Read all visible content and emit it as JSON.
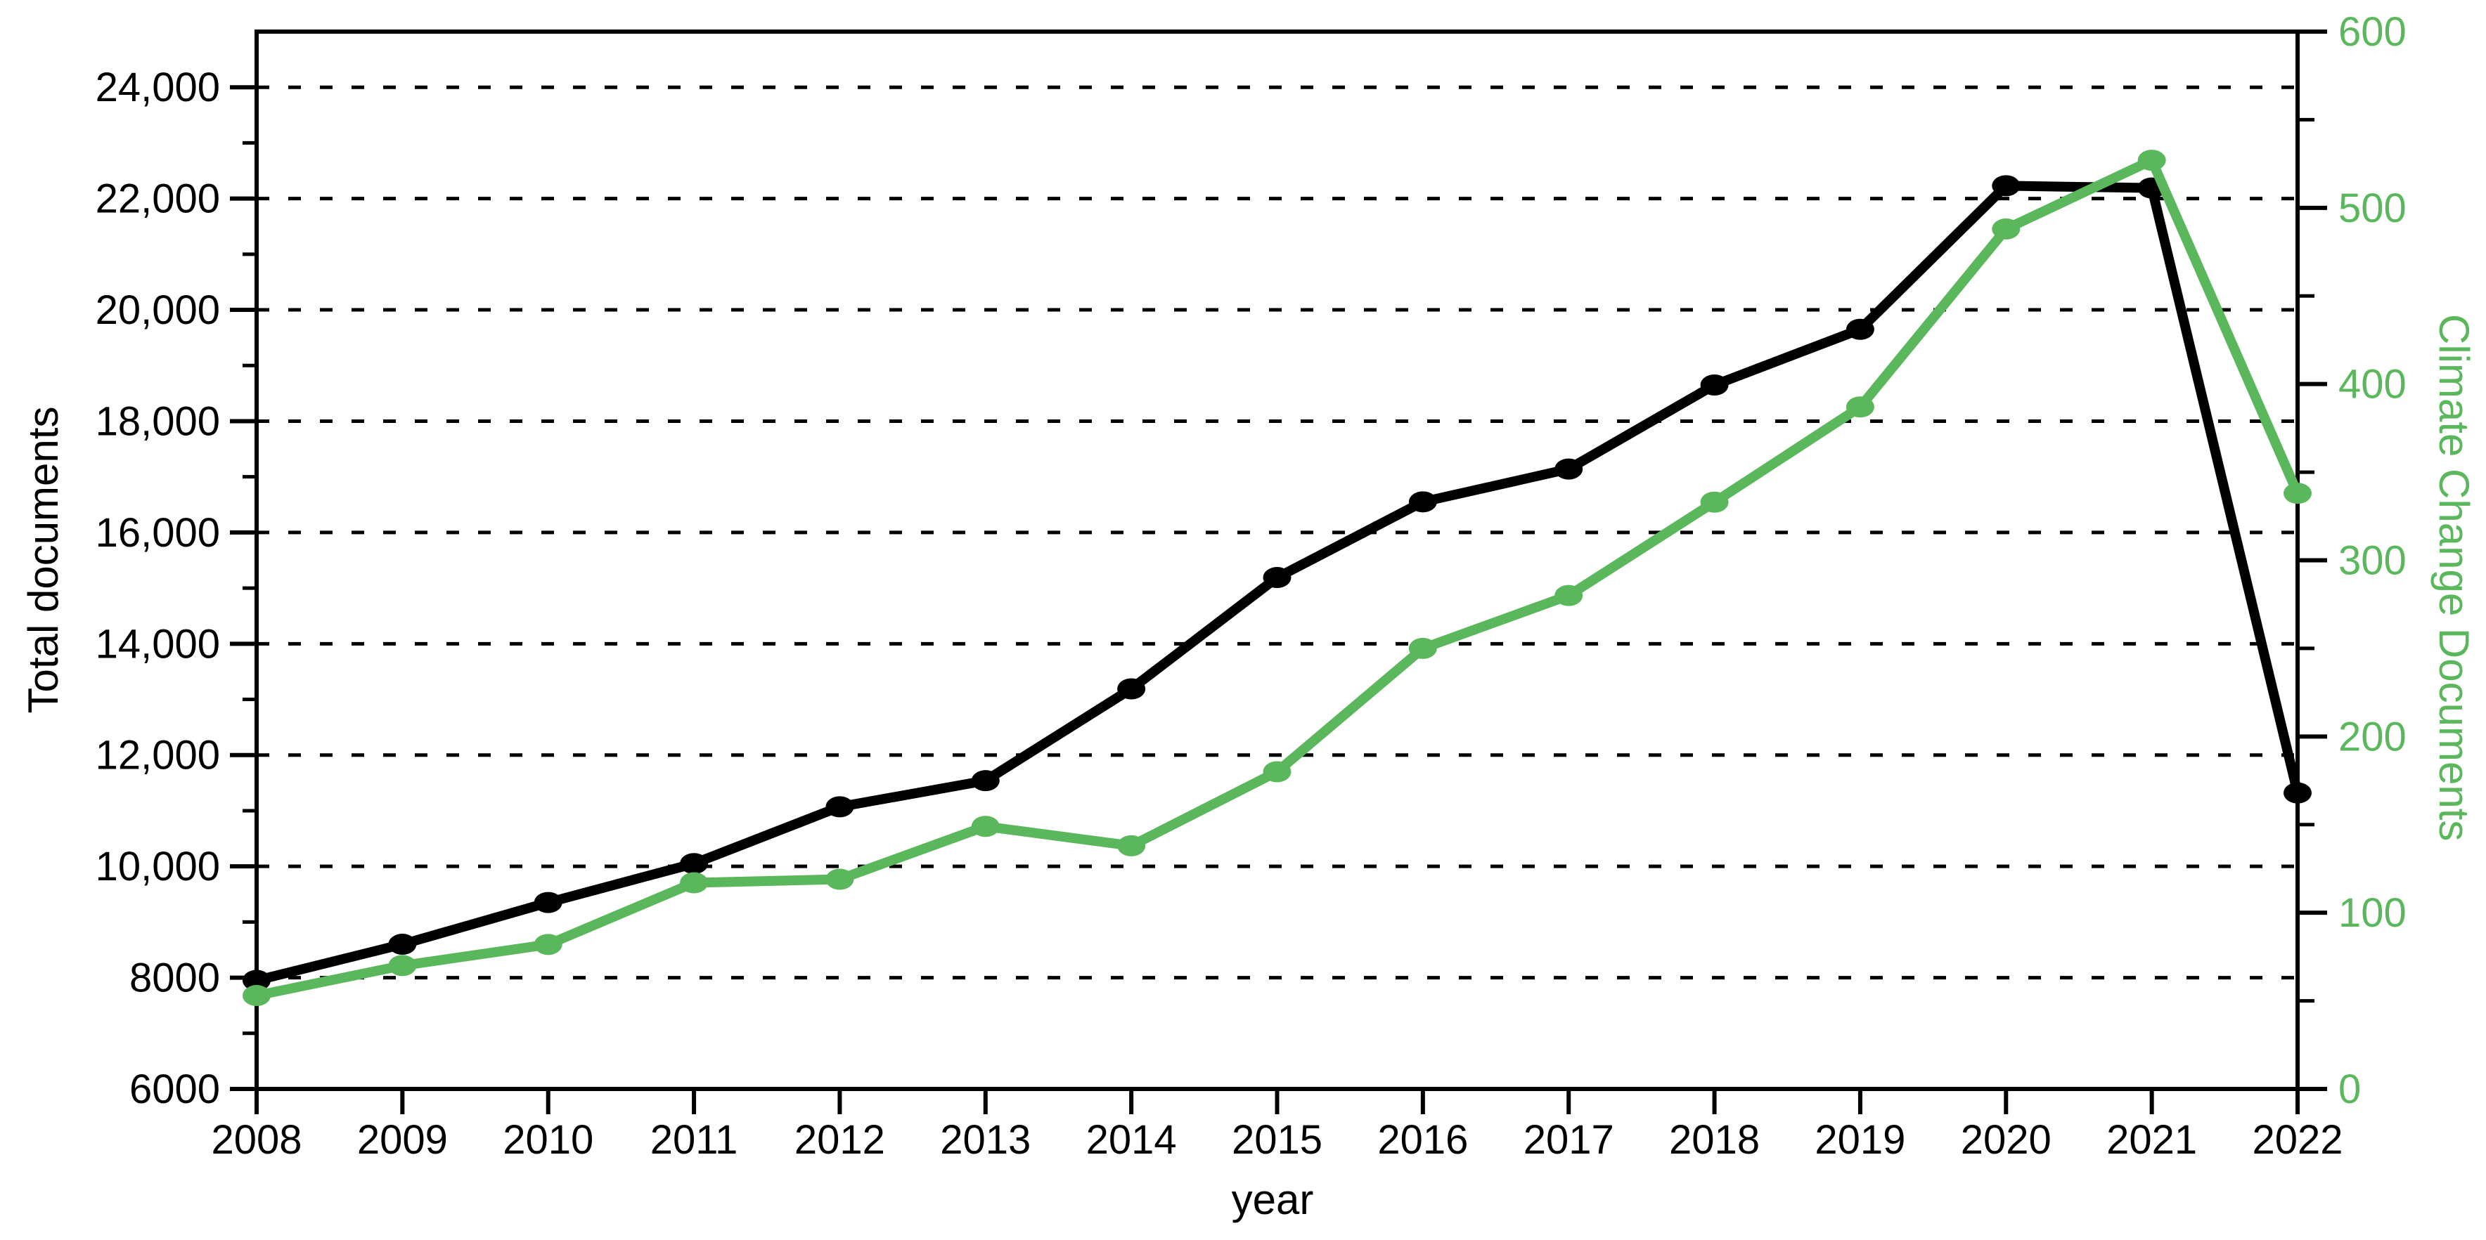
{
  "chart_data": {
    "type": "line",
    "title": "",
    "x_axis": {
      "label": "year",
      "categories": [
        "2008",
        "2009",
        "2010",
        "2011",
        "2012",
        "2013",
        "2014",
        "2015",
        "2016",
        "2017",
        "2018",
        "2019",
        "2020",
        "2021",
        "2022"
      ]
    },
    "left_axis": {
      "label": "Total documents",
      "min": 6000,
      "max": 25000,
      "tick_values": [
        6000,
        8000,
        10000,
        12000,
        14000,
        16000,
        18000,
        20000,
        22000,
        24000
      ],
      "tick_labels": [
        "6000",
        "8000",
        "10,000",
        "12,000",
        "14,000",
        "16,000",
        "18,000",
        "20,000",
        "22,000",
        "24,000"
      ],
      "minor_tick_values": [
        7000,
        9000,
        11000,
        13000,
        15000,
        17000,
        19000,
        21000,
        23000
      ],
      "color": "#000000"
    },
    "right_axis": {
      "label": "Climate Change Documents",
      "min": 0,
      "max": 600,
      "tick_values": [
        0,
        100,
        200,
        300,
        400,
        500,
        600
      ],
      "tick_labels": [
        "0",
        "100",
        "200",
        "300",
        "400",
        "500",
        "600"
      ],
      "minor_tick_values": [
        50,
        150,
        250,
        350,
        450,
        550
      ],
      "color": "#5bb75b"
    },
    "gridlines_at_left_values": [
      8000,
      10000,
      12000,
      14000,
      16000,
      18000,
      20000,
      22000,
      24000
    ],
    "grid_style": "dashed",
    "legend": "none",
    "series": [
      {
        "name": "Total documents",
        "axis": "left",
        "color": "#000000",
        "values": [
          7950,
          8600,
          9350,
          10050,
          11070,
          11540,
          13190,
          15190,
          16550,
          17140,
          18650,
          19650,
          22230,
          22190,
          11320
        ]
      },
      {
        "name": "Climate Change Documents",
        "axis": "right",
        "color": "#5bb75b",
        "values": [
          53,
          70,
          82,
          117,
          119,
          149,
          138,
          180,
          250,
          280,
          333,
          387,
          488,
          527,
          338
        ]
      }
    ]
  }
}
